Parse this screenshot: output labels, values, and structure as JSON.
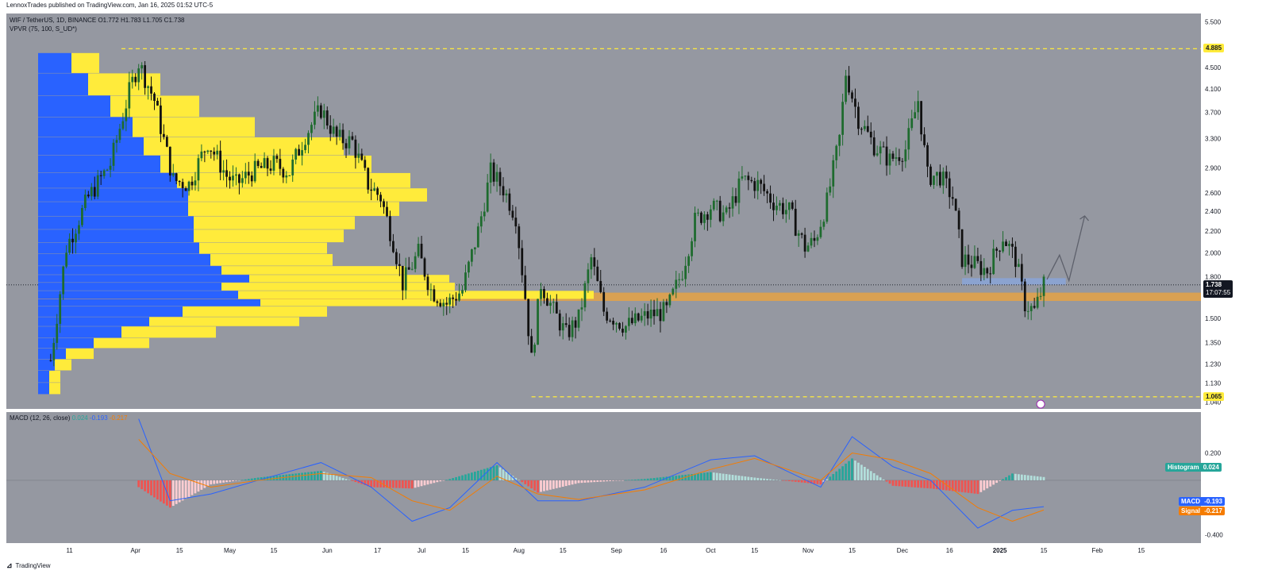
{
  "header": {
    "published": "LennoxTrades published on TradingView.com, Jan 16, 2025 01:52 UTC-5"
  },
  "price_legend": {
    "symbol_line": "WIF / TetherUS, 1D, BINANCE",
    "open": "O1.772",
    "high": "H1.783",
    "low": "L1.705",
    "close": "C1.738",
    "vpvr": "VPVR (75, 100, S_UD*)"
  },
  "macd_legend": {
    "title": "MACD (12, 26, close)",
    "hist": "0.024",
    "macd": "-0.193",
    "signal": "-0.217"
  },
  "price_axis": {
    "ticks": [
      "5.500",
      "4.500",
      "4.100",
      "3.700",
      "3.300",
      "2.900",
      "2.600",
      "2.400",
      "2.200",
      "2.000",
      "1.800",
      "1.500",
      "1.350",
      "1.230",
      "1.130",
      "1.040"
    ],
    "top_level": "4.885",
    "bottom_level": "1.065",
    "current_price": "1.738",
    "countdown": "17:07:55"
  },
  "macd_axis": {
    "ticks": [
      "0.200",
      "-0.400"
    ],
    "histogram_label": "Histogram",
    "histogram_value": "0.024",
    "macd_label": "MACD",
    "macd_value": "-0.193",
    "signal_label": "Signal",
    "signal_value": "-0.217"
  },
  "time_axis": [
    "11",
    "Apr",
    "15",
    "May",
    "15",
    "Jun",
    "17",
    "Jul",
    "15",
    "Aug",
    "15",
    "Sep",
    "16",
    "Oct",
    "15",
    "Nov",
    "15",
    "Dec",
    "16",
    "2025",
    "15",
    "Feb",
    "15"
  ],
  "footer": {
    "brand": "TradingView"
  },
  "colors": {
    "background": "#9598a1",
    "bull": "#1e6b2e",
    "bear": "#111111",
    "vp_up": "#2962ff",
    "vp_down": "#ffeb3b",
    "level": "#ffeb3b",
    "support_zone": "#e0a24a",
    "target_zone": "#8aa4d8",
    "macd_line": "#2962ff",
    "signal_line": "#f57c00",
    "hist_pos": "#26a69a",
    "hist_neg": "#ef5350"
  },
  "chart_data": {
    "type": "candlestick",
    "symbol": "WIF / TetherUS",
    "interval": "1D",
    "exchange": "BINANCE",
    "y_scale": "log",
    "ylim": [
      1.01,
      5.7
    ],
    "last_ohlc": {
      "open": 1.772,
      "high": 1.783,
      "low": 1.705,
      "close": 1.738
    },
    "key_levels": {
      "resistance": 4.885,
      "support": 1.065
    },
    "support_zone": [
      1.62,
      1.68
    ],
    "target_zone": [
      1.74,
      1.79
    ],
    "projection_path": [
      {
        "x": "2025-01-16",
        "y": 1.78
      },
      {
        "x": "2025-01-20",
        "y": 1.98
      },
      {
        "x": "2025-01-23",
        "y": 1.77
      },
      {
        "x": "2025-01-28",
        "y": 2.35
      }
    ],
    "price_path": [
      {
        "x": "2024-03-05",
        "y": 1.25
      },
      {
        "x": "2024-03-10",
        "y": 2.05
      },
      {
        "x": "2024-03-17",
        "y": 2.55
      },
      {
        "x": "2024-03-24",
        "y": 2.95
      },
      {
        "x": "2024-03-30",
        "y": 4.05
      },
      {
        "x": "2024-04-02",
        "y": 4.6
      },
      {
        "x": "2024-04-07",
        "y": 3.9
      },
      {
        "x": "2024-04-13",
        "y": 2.75
      },
      {
        "x": "2024-04-18",
        "y": 2.7
      },
      {
        "x": "2024-04-24",
        "y": 3.25
      },
      {
        "x": "2024-04-30",
        "y": 2.8
      },
      {
        "x": "2024-05-03",
        "y": 2.7
      },
      {
        "x": "2024-05-08",
        "y": 2.85
      },
      {
        "x": "2024-05-15",
        "y": 2.95
      },
      {
        "x": "2024-05-20",
        "y": 2.85
      },
      {
        "x": "2024-05-25",
        "y": 3.35
      },
      {
        "x": "2024-05-30",
        "y": 3.75
      },
      {
        "x": "2024-06-04",
        "y": 3.3
      },
      {
        "x": "2024-06-09",
        "y": 3.25
      },
      {
        "x": "2024-06-14",
        "y": 2.7
      },
      {
        "x": "2024-06-18",
        "y": 2.55
      },
      {
        "x": "2024-06-22",
        "y": 2.1
      },
      {
        "x": "2024-06-25",
        "y": 1.75
      },
      {
        "x": "2024-06-30",
        "y": 2.0
      },
      {
        "x": "2024-07-04",
        "y": 1.7
      },
      {
        "x": "2024-07-09",
        "y": 1.6
      },
      {
        "x": "2024-07-14",
        "y": 1.7
      },
      {
        "x": "2024-07-19",
        "y": 2.2
      },
      {
        "x": "2024-07-23",
        "y": 2.85
      },
      {
        "x": "2024-07-27",
        "y": 2.65
      },
      {
        "x": "2024-07-31",
        "y": 2.35
      },
      {
        "x": "2024-08-03",
        "y": 1.65
      },
      {
        "x": "2024-08-05",
        "y": 1.25
      },
      {
        "x": "2024-08-08",
        "y": 1.75
      },
      {
        "x": "2024-08-12",
        "y": 1.55
      },
      {
        "x": "2024-08-16",
        "y": 1.4
      },
      {
        "x": "2024-08-20",
        "y": 1.5
      },
      {
        "x": "2024-08-24",
        "y": 1.95
      },
      {
        "x": "2024-08-28",
        "y": 1.55
      },
      {
        "x": "2024-09-04",
        "y": 1.45
      },
      {
        "x": "2024-09-11",
        "y": 1.52
      },
      {
        "x": "2024-09-17",
        "y": 1.55
      },
      {
        "x": "2024-09-22",
        "y": 1.85
      },
      {
        "x": "2024-09-26",
        "y": 2.3
      },
      {
        "x": "2024-10-01",
        "y": 2.45
      },
      {
        "x": "2024-10-06",
        "y": 2.35
      },
      {
        "x": "2024-10-11",
        "y": 2.75
      },
      {
        "x": "2024-10-16",
        "y": 2.7
      },
      {
        "x": "2024-10-21",
        "y": 2.5
      },
      {
        "x": "2024-10-26",
        "y": 2.4
      },
      {
        "x": "2024-10-31",
        "y": 2.05
      },
      {
        "x": "2024-11-03",
        "y": 2.1
      },
      {
        "x": "2024-11-07",
        "y": 2.5
      },
      {
        "x": "2024-11-11",
        "y": 3.3
      },
      {
        "x": "2024-11-13",
        "y": 4.4
      },
      {
        "x": "2024-11-17",
        "y": 3.6
      },
      {
        "x": "2024-11-22",
        "y": 3.2
      },
      {
        "x": "2024-11-27",
        "y": 3.0
      },
      {
        "x": "2024-12-02",
        "y": 3.15
      },
      {
        "x": "2024-12-06",
        "y": 3.9
      },
      {
        "x": "2024-12-09",
        "y": 2.8
      },
      {
        "x": "2024-12-13",
        "y": 2.8
      },
      {
        "x": "2024-12-17",
        "y": 2.55
      },
      {
        "x": "2024-12-20",
        "y": 1.95
      },
      {
        "x": "2024-12-24",
        "y": 1.9
      },
      {
        "x": "2024-12-28",
        "y": 1.85
      },
      {
        "x": "2025-01-02",
        "y": 2.15
      },
      {
        "x": "2025-01-06",
        "y": 1.95
      },
      {
        "x": "2025-01-09",
        "y": 1.6
      },
      {
        "x": "2025-01-12",
        "y": 1.55
      },
      {
        "x": "2025-01-15",
        "y": 1.738
      }
    ],
    "macd": [
      {
        "x": "2024-04-02",
        "macd": 0.45,
        "signal": 0.3,
        "hist": -0.05
      },
      {
        "x": "2024-04-12",
        "macd": -0.15,
        "signal": 0.05,
        "hist": -0.2
      },
      {
        "x": "2024-04-25",
        "macd": -0.1,
        "signal": -0.05,
        "hist": -0.03
      },
      {
        "x": "2024-05-10",
        "macd": 0.0,
        "signal": 0.0,
        "hist": 0.02
      },
      {
        "x": "2024-05-30",
        "macd": 0.13,
        "signal": 0.05,
        "hist": 0.07
      },
      {
        "x": "2024-06-15",
        "macd": -0.05,
        "signal": 0.02,
        "hist": -0.05
      },
      {
        "x": "2024-06-28",
        "macd": -0.3,
        "signal": -0.15,
        "hist": -0.06
      },
      {
        "x": "2024-07-10",
        "macd": -0.2,
        "signal": -0.22,
        "hist": 0.01
      },
      {
        "x": "2024-07-25",
        "macd": 0.13,
        "signal": 0.03,
        "hist": 0.11
      },
      {
        "x": "2024-08-07",
        "macd": -0.15,
        "signal": -0.1,
        "hist": -0.09
      },
      {
        "x": "2024-08-20",
        "macd": -0.15,
        "signal": -0.14,
        "hist": -0.02
      },
      {
        "x": "2024-09-10",
        "macd": -0.05,
        "signal": -0.07,
        "hist": 0.01
      },
      {
        "x": "2024-10-01",
        "macd": 0.15,
        "signal": 0.08,
        "hist": 0.06
      },
      {
        "x": "2024-10-15",
        "macd": 0.18,
        "signal": 0.16,
        "hist": 0.02
      },
      {
        "x": "2024-11-05",
        "macd": -0.05,
        "signal": 0.0,
        "hist": -0.03
      },
      {
        "x": "2024-11-15",
        "macd": 0.32,
        "signal": 0.2,
        "hist": 0.16
      },
      {
        "x": "2024-11-28",
        "macd": 0.1,
        "signal": 0.15,
        "hist": -0.04
      },
      {
        "x": "2024-12-10",
        "macd": 0.0,
        "signal": 0.05,
        "hist": -0.06
      },
      {
        "x": "2024-12-25",
        "macd": -0.35,
        "signal": -0.2,
        "hist": -0.1
      },
      {
        "x": "2025-01-05",
        "macd": -0.22,
        "signal": -0.3,
        "hist": 0.05
      },
      {
        "x": "2025-01-15",
        "macd": -0.193,
        "signal": -0.217,
        "hist": 0.024
      }
    ],
    "volume_profile_rows": [
      {
        "price": 4.7,
        "up": 0.06,
        "down": 0.05
      },
      {
        "price": 4.3,
        "up": 0.09,
        "down": 0.13
      },
      {
        "price": 3.9,
        "up": 0.13,
        "down": 0.16
      },
      {
        "price": 3.55,
        "up": 0.17,
        "down": 0.22
      },
      {
        "price": 3.25,
        "up": 0.19,
        "down": 0.36
      },
      {
        "price": 3.0,
        "up": 0.22,
        "down": 0.38
      },
      {
        "price": 2.78,
        "up": 0.25,
        "down": 0.42
      },
      {
        "price": 2.6,
        "up": 0.27,
        "down": 0.43
      },
      {
        "price": 2.45,
        "up": 0.27,
        "down": 0.38
      },
      {
        "price": 2.3,
        "up": 0.28,
        "down": 0.29
      },
      {
        "price": 2.17,
        "up": 0.28,
        "down": 0.27
      },
      {
        "price": 2.05,
        "up": 0.29,
        "down": 0.23
      },
      {
        "price": 1.95,
        "up": 0.31,
        "down": 0.22
      },
      {
        "price": 1.85,
        "up": 0.33,
        "down": 0.33
      },
      {
        "price": 1.78,
        "up": 0.38,
        "down": 0.36
      },
      {
        "price": 1.72,
        "up": 0.33,
        "down": 0.42
      },
      {
        "price": 1.66,
        "up": 0.36,
        "down": 0.64
      },
      {
        "price": 1.6,
        "up": 0.4,
        "down": 0.35
      },
      {
        "price": 1.55,
        "up": 0.26,
        "down": 0.26
      },
      {
        "price": 1.48,
        "up": 0.2,
        "down": 0.27
      },
      {
        "price": 1.42,
        "up": 0.15,
        "down": 0.17
      },
      {
        "price": 1.35,
        "up": 0.1,
        "down": 0.1
      },
      {
        "price": 1.29,
        "up": 0.05,
        "down": 0.05
      },
      {
        "price": 1.23,
        "up": 0.03,
        "down": 0.03
      },
      {
        "price": 1.17,
        "up": 0.02,
        "down": 0.02
      },
      {
        "price": 1.11,
        "up": 0.02,
        "down": 0.02
      }
    ]
  }
}
